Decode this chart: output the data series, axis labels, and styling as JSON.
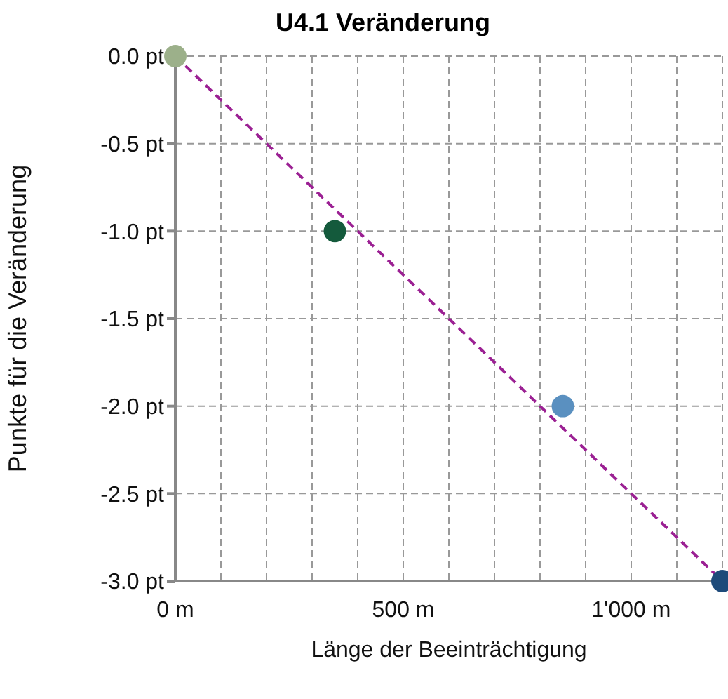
{
  "chart_data": {
    "type": "scatter",
    "title": "U4.1 Veränderung",
    "xlabel": "Länge der Beeinträchtigung",
    "ylabel": "Punkte für die Veränderung",
    "x": [
      0,
      350,
      850,
      1200
    ],
    "values": [
      0,
      -1,
      -2,
      -3
    ],
    "colors": [
      "#9cb08a",
      "#145a3c",
      "#5a90c0",
      "#1d4a7a"
    ],
    "series": [
      {
        "type": "line",
        "x": [
          0,
          1200
        ],
        "values": [
          0,
          -3
        ],
        "color": "#9b2093",
        "line_style": "dashed",
        "marker": "none"
      }
    ],
    "marker": "circle",
    "xlim": [
      0,
      1200
    ],
    "xticks": [
      {
        "value": 0,
        "label": "0 m"
      },
      {
        "value": 100,
        "label": null
      },
      {
        "value": 200,
        "label": null
      },
      {
        "value": 300,
        "label": null
      },
      {
        "value": 400,
        "label": null
      },
      {
        "value": 500,
        "label": "500 m"
      },
      {
        "value": 600,
        "label": null
      },
      {
        "value": 700,
        "label": null
      },
      {
        "value": 800,
        "label": null
      },
      {
        "value": 900,
        "label": null
      },
      {
        "value": 1000,
        "label": "1'000 m"
      },
      {
        "value": 1100,
        "label": null
      },
      {
        "value": 1200,
        "label": null
      }
    ],
    "ylim": [
      -3,
      0
    ],
    "yticks": [
      {
        "value": 0,
        "label": "0.0 pt"
      },
      {
        "value": -0.5,
        "label": "-0.5 pt"
      },
      {
        "value": -1,
        "label": "-1.0 pt"
      },
      {
        "value": -1.5,
        "label": "-1.5 pt"
      },
      {
        "value": -2,
        "label": "-2.0 pt"
      },
      {
        "value": -2.5,
        "label": "-2.5 pt"
      },
      {
        "value": -3,
        "label": "-3.0 pt"
      }
    ],
    "grid": true
  }
}
